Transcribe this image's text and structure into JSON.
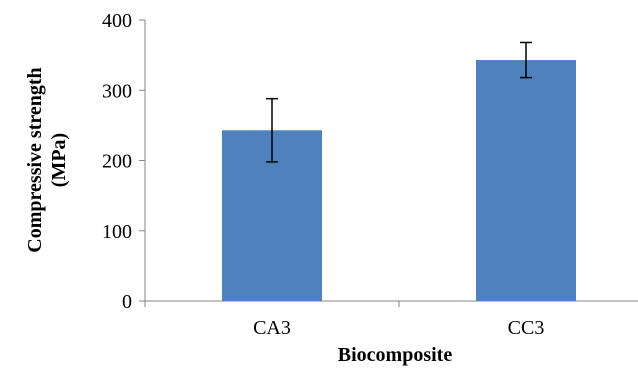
{
  "chart_data": {
    "type": "bar",
    "categories": [
      "CA3",
      "CC3"
    ],
    "values": [
      243,
      343
    ],
    "error_bars": [
      {
        "low": 198,
        "high": 288
      },
      {
        "low": 318,
        "high": 368
      }
    ],
    "xlabel": "Biocomposite",
    "ylabel": [
      "Compressive strength",
      "(MPa)"
    ],
    "ylim": [
      0,
      400
    ],
    "yticks": [
      "0",
      "100",
      "200",
      "300",
      "400"
    ],
    "grid": false,
    "legend": "none",
    "bar_color": "#4F81BD"
  }
}
